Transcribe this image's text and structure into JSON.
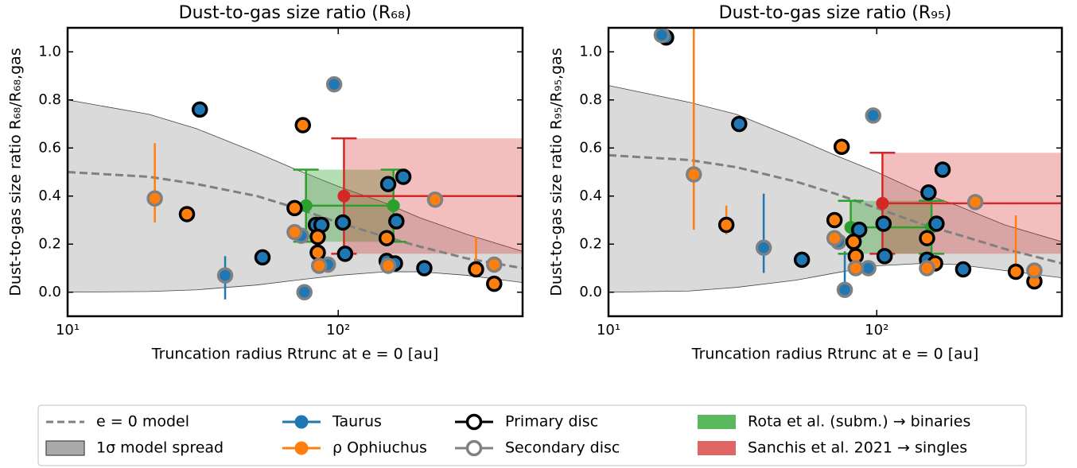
{
  "chart_data": [
    {
      "type": "scatter",
      "title": "Dust-to-gas size ratio (R₆₈)",
      "xlabel": "Truncation radius Rtrunc at e = 0 [au]",
      "ylabel": "Dust-to-gas size ratio R₆₈/R₆₈,gas",
      "xscale": "log",
      "xlim": [
        10,
        480
      ],
      "ylim": [
        -0.1,
        1.1
      ],
      "xticks": [
        {
          "value": 10,
          "label": "10¹"
        },
        {
          "value": 100,
          "label": "10²"
        }
      ],
      "yticks": [
        {
          "value": 0,
          "label": "0.0"
        },
        0.2,
        0.4,
        0.6,
        0.8,
        {
          "value": 1,
          "label": "1.0"
        }
      ],
      "model": {
        "color": "#808080",
        "band_color": "#bbbbbb",
        "x": [
          10,
          20,
          30,
          50,
          70,
          100,
          150,
          200,
          300,
          480
        ],
        "values": [
          0.5,
          0.48,
          0.45,
          0.4,
          0.35,
          0.29,
          0.23,
          0.19,
          0.14,
          0.1
        ],
        "upper": [
          0.8,
          0.74,
          0.68,
          0.58,
          0.51,
          0.44,
          0.37,
          0.31,
          0.24,
          0.17
        ],
        "lower": [
          0,
          0.003,
          0.01,
          0.03,
          0.05,
          0.07,
          0.085,
          0.085,
          0.07,
          0.04
        ]
      },
      "rota": {
        "color": "#2ca02c",
        "x": [
          76,
          160
        ],
        "y": 0.36,
        "ylow": 0.21,
        "yhigh": 0.51
      },
      "sanchis": {
        "color": "#d62728",
        "x": 105,
        "y": 0.4,
        "ylow": 0.16,
        "yhigh": 0.64
      },
      "errorbars": {
        "x": [
          21,
          38.2,
          323
        ],
        "low": [
          0.29,
          -0.03,
          0.095
        ],
        "high": [
          0.62,
          0.15,
          0.23
        ],
        "color": [
          "#ff7f0e",
          "#1f77b4",
          "#ff7f0e"
        ]
      },
      "series": [
        {
          "color": "#1f77b4",
          "edgecolor": "#000000",
          "x": [
            30.8,
            52.5,
            82.7,
            86.7,
            104,
            106,
            153,
            174,
            164,
            151,
            162,
            208
          ],
          "values": [
            0.76,
            0.145,
            0.28,
            0.28,
            0.29,
            0.16,
            0.45,
            0.48,
            0.295,
            0.13,
            0.12,
            0.1
          ]
        },
        {
          "color": "#1f77b4",
          "edgecolor": "#808080",
          "x": [
            96.6,
            38.2,
            73,
            75,
            91.6
          ],
          "values": [
            0.865,
            0.07,
            0.235,
            0.0,
            0.115
          ]
        },
        {
          "color": "#ff7f0e",
          "edgecolor": "#000000",
          "x": [
            74,
            27.6,
            69,
            84,
            84,
            151,
            323,
            377
          ],
          "values": [
            0.695,
            0.325,
            0.35,
            0.23,
            0.165,
            0.225,
            0.095,
            0.035
          ]
        },
        {
          "color": "#ff7f0e",
          "edgecolor": "#808080",
          "x": [
            21,
            69,
            85,
            153,
            228,
            377
          ],
          "values": [
            0.39,
            0.25,
            0.11,
            0.11,
            0.385,
            0.115
          ]
        }
      ]
    },
    {
      "type": "scatter",
      "title": "Dust-to-gas size ratio (R₉₅)",
      "xlabel": "Truncation radius Rtrunc at e = 0 [au]",
      "ylabel": "Dust-to-gas size ratio R₉₅/R₉₅,gas",
      "xscale": "log",
      "xlim": [
        10,
        490
      ],
      "ylim": [
        -0.1,
        1.1
      ],
      "xticks": [
        {
          "value": 10,
          "label": "10¹"
        },
        {
          "value": 100,
          "label": "10²"
        }
      ],
      "yticks": [
        {
          "value": 0,
          "label": "0.0"
        },
        0.2,
        0.4,
        0.6,
        0.8,
        {
          "value": 1,
          "label": "1.0"
        }
      ],
      "model": {
        "color": "#808080",
        "band_color": "#bbbbbb",
        "x": [
          10,
          20,
          30,
          50,
          70,
          100,
          150,
          200,
          300,
          490
        ],
        "values": [
          0.57,
          0.55,
          0.52,
          0.46,
          0.41,
          0.35,
          0.28,
          0.24,
          0.18,
          0.12
        ],
        "upper": [
          0.86,
          0.79,
          0.74,
          0.64,
          0.57,
          0.5,
          0.41,
          0.36,
          0.28,
          0.21
        ],
        "lower": [
          0,
          0.005,
          0.02,
          0.05,
          0.08,
          0.11,
          0.12,
          0.115,
          0.09,
          0.06
        ]
      },
      "rota": {
        "color": "#2ca02c",
        "x": [
          80,
          160
        ],
        "y": 0.27,
        "ylow": 0.16,
        "yhigh": 0.38
      },
      "sanchis": {
        "color": "#d62728",
        "x": 105,
        "y": 0.37,
        "ylow": 0.16,
        "yhigh": 0.58
      },
      "errorbars": {
        "x": [
          20.8,
          27.5,
          37.9,
          76,
          330
        ],
        "low": [
          0.26,
          0.24,
          0.08,
          0.0,
          0.085
        ],
        "high": [
          1.1,
          0.36,
          0.41,
          0.17,
          0.32
        ],
        "color": [
          "#ff7f0e",
          "#ff7f0e",
          "#1f77b4",
          "#1f77b4",
          "#ff7f0e"
        ]
      },
      "series": [
        {
          "color": "#1f77b4",
          "edgecolor": "#000000",
          "x": [
            16.4,
            30.7,
            52.6,
            86,
            106,
            107,
            156,
            176,
            167,
            154,
            210
          ],
          "values": [
            1.06,
            0.7,
            0.135,
            0.26,
            0.285,
            0.15,
            0.415,
            0.51,
            0.285,
            0.135,
            0.095
          ]
        },
        {
          "color": "#1f77b4",
          "edgecolor": "#808080",
          "x": [
            15.8,
            37.9,
            72,
            76,
            93,
            97
          ],
          "values": [
            1.07,
            0.185,
            0.21,
            0.01,
            0.1,
            0.735
          ]
        },
        {
          "color": "#ff7f0e",
          "edgecolor": "#000000",
          "x": [
            74,
            27.5,
            69.6,
            82,
            83.5,
            154,
            165,
            330,
            387
          ],
          "values": [
            0.605,
            0.28,
            0.3,
            0.21,
            0.15,
            0.225,
            0.12,
            0.085,
            0.045
          ]
        },
        {
          "color": "#ff7f0e",
          "edgecolor": "#808080",
          "x": [
            20.8,
            69.6,
            83.5,
            154,
            233,
            387
          ],
          "values": [
            0.49,
            0.225,
            0.1,
            0.1,
            0.375,
            0.09
          ]
        }
      ]
    }
  ],
  "legend": [
    {
      "label": "e = 0 model",
      "kind": "dashed-line",
      "color": "#808080"
    },
    {
      "label": "1σ model spread",
      "kind": "patch",
      "color": "#a9a9a9"
    },
    {
      "label": "Taurus",
      "kind": "marker-line",
      "color": "#1f77b4"
    },
    {
      "label": "ρ Ophiuchus",
      "kind": "marker-line",
      "color": "#ff7f0e"
    },
    {
      "label": "Primary disc",
      "kind": "marker-edge",
      "color": "#000000"
    },
    {
      "label": "Secondary disc",
      "kind": "marker-edge",
      "color": "#808080"
    },
    {
      "label": "Rota et al. (subm.) → binaries",
      "kind": "patch",
      "color": "#5cb85c"
    },
    {
      "label": "Sanchis et al. 2021 → singles",
      "kind": "patch",
      "color": "#e06666"
    }
  ]
}
